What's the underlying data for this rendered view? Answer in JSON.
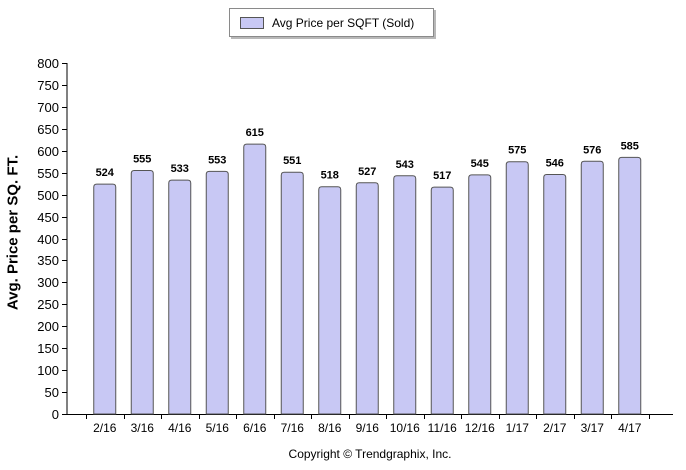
{
  "chart_data": {
    "type": "bar",
    "categories": [
      "2/16",
      "3/16",
      "4/16",
      "5/16",
      "6/16",
      "7/16",
      "8/16",
      "9/16",
      "10/16",
      "11/16",
      "12/16",
      "1/17",
      "2/17",
      "3/17",
      "4/17"
    ],
    "series": [
      {
        "name": "Avg Price per SQFT (Sold)",
        "values": [
          524,
          555,
          533,
          553,
          615,
          551,
          518,
          527,
          543,
          517,
          545,
          575,
          546,
          576,
          585
        ]
      }
    ],
    "ylabel": "Avg. Price per SQ. FT.",
    "xlabel": "",
    "ylim": [
      0,
      800
    ],
    "yticks": [
      0,
      50,
      100,
      150,
      200,
      250,
      300,
      350,
      400,
      450,
      500,
      550,
      600,
      650,
      700,
      750,
      800
    ],
    "legend_position": "top-center",
    "grid": false,
    "bar_color": "#c8c8f4",
    "bar_stroke": "#555555"
  },
  "legend_label": "Avg Price per SQFT (Sold)",
  "copyright": "Copyright © Trendgraphix, Inc."
}
